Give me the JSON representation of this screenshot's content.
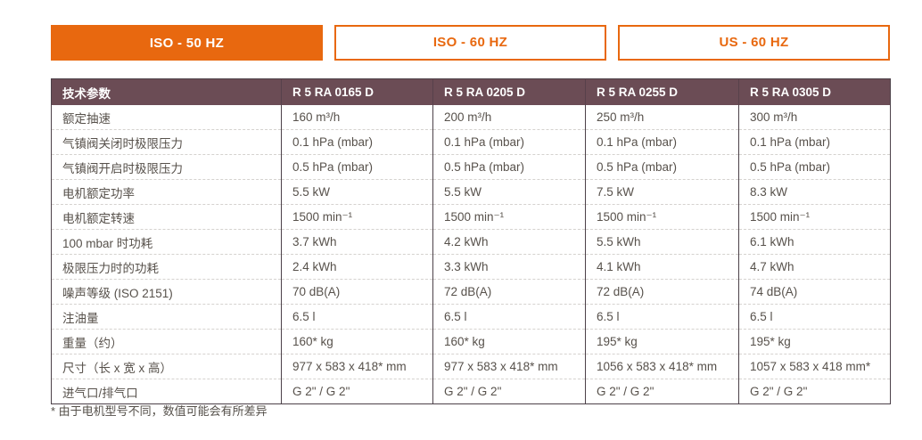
{
  "tabs": [
    {
      "label": "ISO - 50 HZ",
      "active": true
    },
    {
      "label": "ISO - 60 HZ",
      "active": false
    },
    {
      "label": "US - 60 HZ",
      "active": false
    }
  ],
  "table": {
    "header": [
      "技术参数",
      "R 5 RA 0165 D",
      "R 5 RA 0205 D",
      "R 5 RA 0255 D",
      "R 5 RA 0305 D"
    ],
    "rows": [
      {
        "label": "额定抽速",
        "values": [
          "160 m³/h",
          "200 m³/h",
          "250 m³/h",
          "300 m³/h"
        ]
      },
      {
        "label": "气镇阀关闭时极限压力",
        "values": [
          "0.1 hPa (mbar)",
          "0.1 hPa (mbar)",
          "0.1 hPa (mbar)",
          "0.1 hPa (mbar)"
        ]
      },
      {
        "label": "气镇阀开启时极限压力",
        "values": [
          "0.5 hPa (mbar)",
          "0.5 hPa (mbar)",
          "0.5 hPa (mbar)",
          "0.5 hPa (mbar)"
        ]
      },
      {
        "label": "电机额定功率",
        "values": [
          "5.5 kW",
          "5.5 kW",
          "7.5 kW",
          "8.3 kW"
        ]
      },
      {
        "label": "电机额定转速",
        "values": [
          "1500 min⁻¹",
          "1500 min⁻¹",
          "1500 min⁻¹",
          "1500 min⁻¹"
        ]
      },
      {
        "label": "100 mbar 时功耗",
        "values": [
          "3.7 kWh",
          "4.2 kWh",
          "5.5 kWh",
          "6.1 kWh"
        ]
      },
      {
        "label": "极限压力时的功耗",
        "values": [
          "2.4 kWh",
          "3.3 kWh",
          "4.1 kWh",
          "4.7 kWh"
        ]
      },
      {
        "label": "噪声等级 (ISO 2151)",
        "values": [
          "70 dB(A)",
          "72 dB(A)",
          "72 dB(A)",
          "74 dB(A)"
        ]
      },
      {
        "label": "注油量",
        "values": [
          "6.5 l",
          "6.5 l",
          "6.5 l",
          "6.5 l"
        ]
      },
      {
        "label": "重量（约）",
        "values": [
          "160* kg",
          "160* kg",
          "195* kg",
          "195* kg"
        ]
      },
      {
        "label": "尺寸（长 x 宽 x 高）",
        "values": [
          "977 x 583 x 418* mm",
          "977 x 583 x 418* mm",
          "1056 x 583 x 418* mm",
          "1057 x 583 x 418 mm*"
        ]
      },
      {
        "label": "进气口/排气口",
        "values": [
          "G 2\" / G 2\"",
          "G 2\" / G 2\"",
          "G 2\" / G 2\"",
          "G 2\" / G 2\""
        ]
      }
    ]
  },
  "footnote": "* 由于电机型号不同，数值可能会有所差异",
  "colors": {
    "accent_orange": "#e8680f",
    "header_bg": "#6b4c55",
    "table_border": "#4c4149",
    "body_text": "#57514b"
  }
}
